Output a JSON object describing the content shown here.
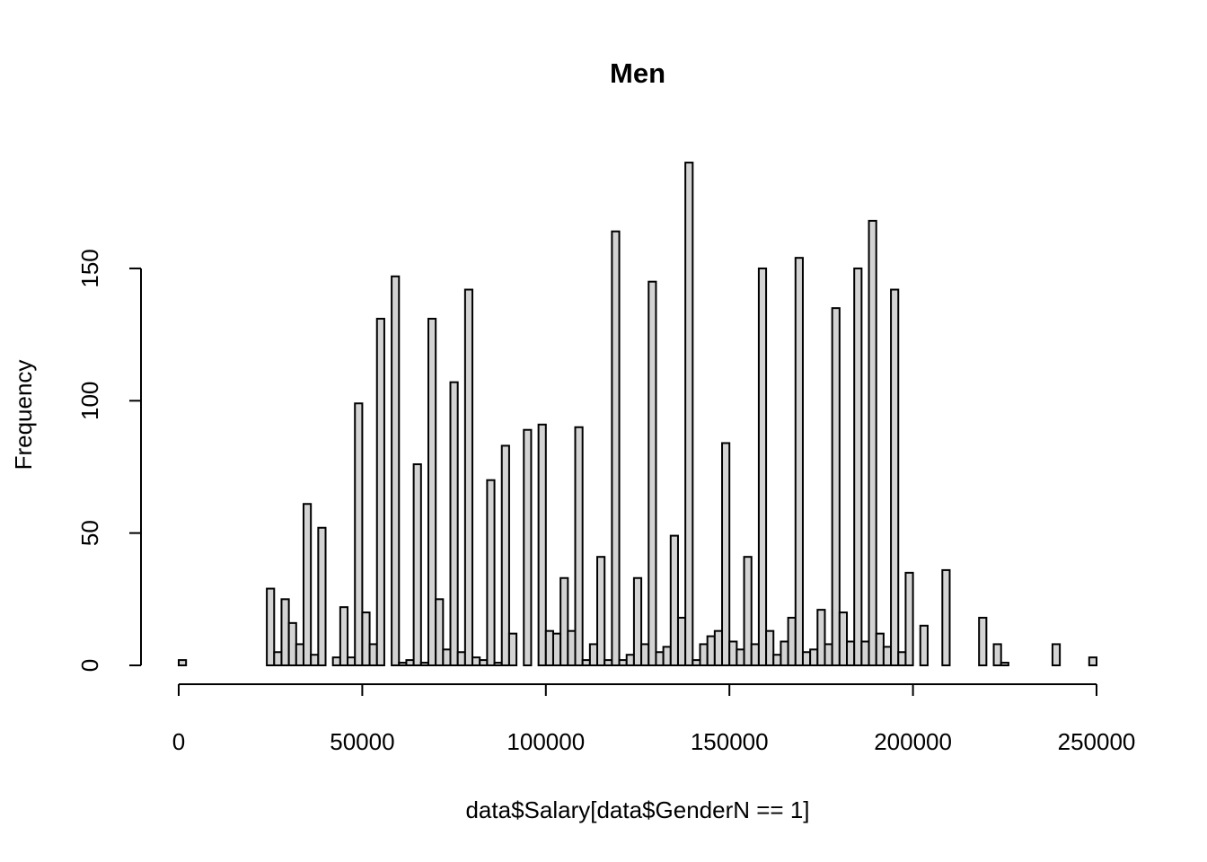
{
  "chart_data": {
    "type": "bar",
    "subtype": "histogram",
    "title": "Men",
    "xlabel": "data$Salary[data$GenderN == 1]",
    "ylabel": "Frequency",
    "bin_width": 2000,
    "xlim": [
      0,
      250000
    ],
    "ylim": [
      0,
      190
    ],
    "x_ticks": [
      0,
      50000,
      100000,
      150000,
      200000,
      250000
    ],
    "x_tick_labels": [
      "0",
      "50000",
      "100000",
      "150000",
      "200000",
      "250000"
    ],
    "y_ticks": [
      0,
      50,
      100,
      150
    ],
    "y_tick_labels": [
      "0",
      "50",
      "100",
      "150"
    ],
    "grid": false,
    "bar_fill": "#d3d3d3",
    "bar_stroke": "#000000",
    "values": [
      2,
      0,
      0,
      0,
      0,
      0,
      0,
      0,
      0,
      0,
      0,
      0,
      29,
      5,
      25,
      16,
      8,
      61,
      4,
      52,
      0,
      3,
      22,
      3,
      99,
      20,
      8,
      131,
      0,
      147,
      1,
      2,
      76,
      1,
      131,
      25,
      6,
      107,
      5,
      142,
      3,
      2,
      70,
      1,
      83,
      12,
      0,
      89,
      0,
      91,
      13,
      12,
      33,
      13,
      90,
      2,
      8,
      41,
      2,
      164,
      2,
      4,
      33,
      8,
      145,
      5,
      7,
      49,
      18,
      190,
      2,
      8,
      11,
      13,
      84,
      9,
      6,
      41,
      8,
      150,
      13,
      4,
      9,
      18,
      154,
      5,
      6,
      21,
      8,
      135,
      20,
      9,
      150,
      9,
      168,
      12,
      7,
      142,
      5,
      35,
      0,
      15,
      0,
      0,
      36,
      0,
      0,
      0,
      0,
      18,
      0,
      8,
      1,
      0,
      0,
      0,
      0,
      0,
      0,
      8,
      0,
      0,
      0,
      0,
      3
    ]
  }
}
